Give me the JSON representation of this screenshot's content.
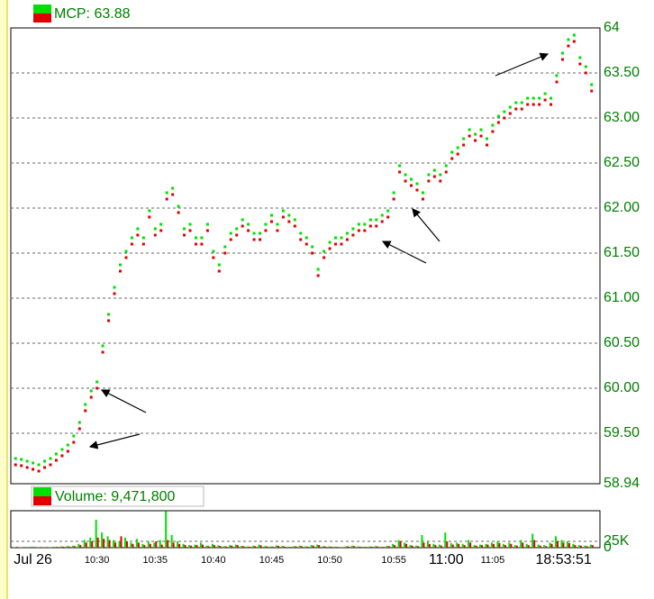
{
  "chart_data": [
    {
      "type": "dot",
      "title": "MCP: 63.88",
      "ylim": [
        58.94,
        64
      ],
      "yticks": [
        64,
        {
          "value": 63.5,
          "label": "63.50"
        },
        {
          "value": 63,
          "label": "63.00"
        },
        {
          "value": 62.5,
          "label": "62.50"
        },
        {
          "value": 62,
          "label": "62.00"
        },
        {
          "value": 61.5,
          "label": "61.50"
        },
        {
          "value": 61,
          "label": "61.00"
        },
        {
          "value": 60.5,
          "label": "60.50"
        },
        {
          "value": 60,
          "label": "60.00"
        },
        {
          "value": 59.5,
          "label": "59.50"
        },
        58.94
      ],
      "grid": true,
      "series": [
        {
          "color": "#00e000",
          "values": [
            59.22,
            59.21,
            59.19,
            59.17,
            59.15,
            59.19,
            59.22,
            59.27,
            59.32,
            59.37,
            59.47,
            59.62,
            59.82,
            59.97,
            60.07,
            60.47,
            60.82,
            61.12,
            61.37,
            61.52,
            61.67,
            61.77,
            61.67,
            61.97,
            61.77,
            61.82,
            62.17,
            62.22,
            62.02,
            61.77,
            61.82,
            61.67,
            61.67,
            61.82,
            61.52,
            61.37,
            61.57,
            61.72,
            61.77,
            61.87,
            61.82,
            61.72,
            61.72,
            61.82,
            61.92,
            61.82,
            61.97,
            61.92,
            61.87,
            61.72,
            61.67,
            61.57,
            61.32,
            61.52,
            61.62,
            61.67,
            61.67,
            61.72,
            61.77,
            61.82,
            61.82,
            61.87,
            61.87,
            61.92,
            61.97,
            62.17,
            62.47,
            62.37,
            62.32,
            62.27,
            62.17,
            62.37,
            62.42,
            62.37,
            62.47,
            62.62,
            62.67,
            62.77,
            62.87,
            62.82,
            62.87,
            62.77,
            62.92,
            63.02,
            63.07,
            63.12,
            63.17,
            63.17,
            63.22,
            63.22,
            63.22,
            63.27,
            63.22,
            63.47,
            63.72,
            63.87,
            63.92,
            63.67,
            63.57,
            63.37
          ]
        },
        {
          "color": "#e00000",
          "values": [
            59.15,
            59.14,
            59.12,
            59.1,
            59.08,
            59.12,
            59.15,
            59.2,
            59.25,
            59.3,
            59.4,
            59.55,
            59.75,
            59.9,
            60,
            60.4,
            60.75,
            61.05,
            61.3,
            61.45,
            61.6,
            61.7,
            61.6,
            61.9,
            61.7,
            61.75,
            62.1,
            62.15,
            61.95,
            61.7,
            61.75,
            61.6,
            61.6,
            61.75,
            61.45,
            61.3,
            61.5,
            61.65,
            61.7,
            61.8,
            61.75,
            61.65,
            61.65,
            61.75,
            61.85,
            61.75,
            61.9,
            61.85,
            61.8,
            61.65,
            61.6,
            61.5,
            61.25,
            61.45,
            61.55,
            61.6,
            61.6,
            61.65,
            61.7,
            61.75,
            61.75,
            61.8,
            61.8,
            61.85,
            61.9,
            62.1,
            62.4,
            62.3,
            62.25,
            62.2,
            62.1,
            62.3,
            62.35,
            62.3,
            62.4,
            62.55,
            62.6,
            62.7,
            62.8,
            62.75,
            62.8,
            62.7,
            62.85,
            62.95,
            63,
            63.05,
            63.1,
            63.1,
            63.15,
            63.15,
            63.15,
            63.2,
            63.15,
            63.4,
            63.65,
            63.8,
            63.85,
            63.6,
            63.5,
            63.3
          ]
        }
      ]
    },
    {
      "type": "bar",
      "title": "Volume: 9,471,800",
      "categories": [
        null,
        null,
        null,
        "Jul 26",
        null,
        null,
        null,
        null,
        null,
        null,
        null,
        null,
        null,
        null,
        "10:30",
        null,
        null,
        null,
        null,
        null,
        null,
        null,
        null,
        null,
        "10:35",
        null,
        null,
        null,
        null,
        null,
        null,
        null,
        null,
        null,
        "10:40",
        null,
        null,
        null,
        null,
        null,
        null,
        null,
        null,
        null,
        "10:45",
        null,
        null,
        null,
        null,
        null,
        null,
        null,
        null,
        null,
        "10:50",
        null,
        null,
        null,
        null,
        null,
        null,
        null,
        null,
        null,
        null,
        "10:55",
        null,
        null,
        null,
        null,
        null,
        null,
        null,
        null,
        "11:00",
        null,
        null,
        null,
        null,
        null,
        null,
        null,
        "11:05",
        null,
        null,
        null,
        null,
        null,
        null,
        null,
        null,
        null,
        null,
        null,
        null,
        null,
        null,
        null,
        null,
        "18:53:51"
      ],
      "ylim": [
        0,
        146000
      ],
      "yticks": [
        {
          "value": 25000,
          "label": "25K"
        },
        0
      ],
      "grid": true,
      "series": [
        {
          "color": "#00e000",
          "values": [
            2000,
            1500,
            3000,
            4000,
            2500,
            1000,
            2000,
            3500,
            5000,
            6000,
            8000,
            15000,
            30000,
            40000,
            110000,
            60000,
            45000,
            30000,
            25000,
            40000,
            20000,
            35000,
            15000,
            25000,
            20000,
            30000,
            145000,
            50000,
            25000,
            15000,
            10000,
            12000,
            20000,
            8000,
            15000,
            9000,
            6000,
            10000,
            12000,
            7000,
            5000,
            8000,
            12000,
            6000,
            5000,
            9000,
            7000,
            4000,
            6000,
            8000,
            5000,
            10000,
            12000,
            6000,
            5000,
            4000,
            3000,
            6000,
            8000,
            5000,
            4000,
            5000,
            6000,
            4000,
            7000,
            15000,
            30000,
            20000,
            10000,
            8000,
            50000,
            25000,
            15000,
            12000,
            60000,
            18000,
            20000,
            15000,
            30000,
            10000,
            12000,
            15000,
            20000,
            25000,
            15000,
            20000,
            10000,
            30000,
            15000,
            55000,
            12000,
            10000,
            20000,
            45000,
            30000,
            25000,
            15000,
            10000,
            8000,
            12000
          ]
        },
        {
          "color": "#e00000",
          "values": [
            3000,
            2000,
            1000,
            2500,
            1500,
            2000,
            1000,
            3000,
            4000,
            5000,
            6000,
            10000,
            20000,
            25000,
            40000,
            35000,
            30000,
            20000,
            45000,
            25000,
            15000,
            20000,
            10000,
            15000,
            25000,
            12000,
            30000,
            20000,
            15000,
            10000,
            8000,
            10000,
            12000,
            6000,
            10000,
            7000,
            5000,
            8000,
            10000,
            6000,
            4000,
            6000,
            9000,
            5000,
            4000,
            7000,
            5000,
            3000,
            5000,
            6000,
            4000,
            8000,
            10000,
            5000,
            4000,
            3000,
            2000,
            5000,
            6000,
            4000,
            3000,
            4000,
            5000,
            3000,
            6000,
            10000,
            25000,
            15000,
            8000,
            6000,
            20000,
            15000,
            10000,
            8000,
            25000,
            12000,
            15000,
            10000,
            20000,
            8000,
            10000,
            12000,
            15000,
            18000,
            10000,
            15000,
            8000,
            20000,
            10000,
            30000,
            8000,
            6000,
            15000,
            25000,
            20000,
            18000,
            10000,
            8000,
            6000,
            10000
          ]
        }
      ]
    }
  ]
}
